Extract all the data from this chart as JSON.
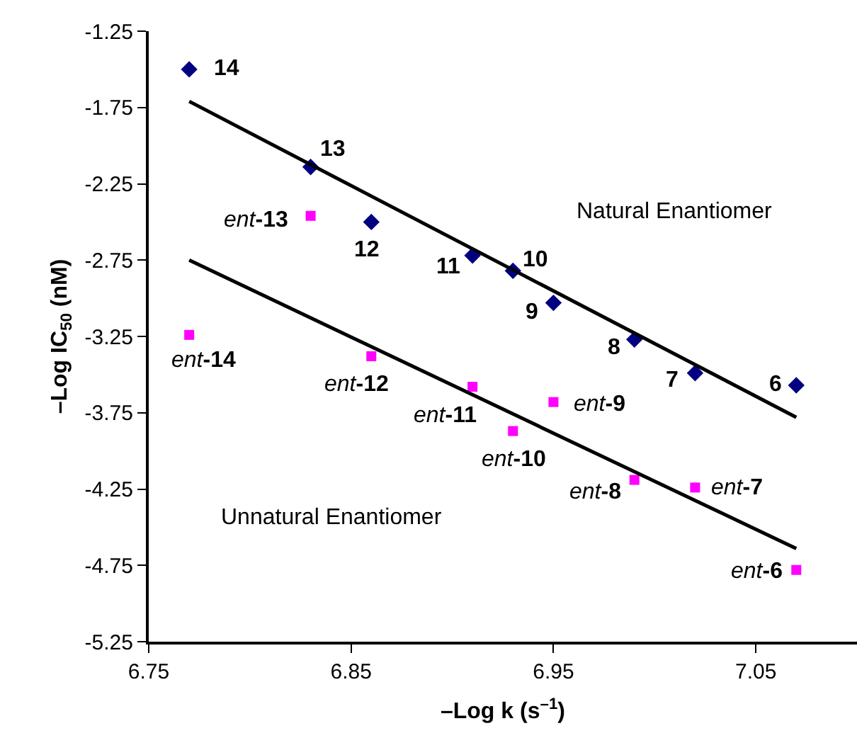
{
  "chart_data": {
    "type": "scatter",
    "xlabel": "–Log k (s$^{–1}$)",
    "ylabel": "–Log IC$_{50}$ (nM)",
    "xlim": [
      6.75,
      7.1
    ],
    "xticks": [
      6.75,
      6.85,
      6.95,
      7.05
    ],
    "ylim": [
      -5.25,
      -1.25
    ],
    "yticks": [
      -5.25,
      -4.75,
      -4.25,
      -3.75,
      -3.25,
      -2.75,
      -2.25,
      -1.75,
      -1.25
    ],
    "grid": false,
    "series": [
      {
        "marker": "diamond",
        "color": "#000080",
        "x": [
          6.77,
          6.83,
          6.86,
          6.91,
          6.93,
          6.95,
          6.99,
          7.02,
          7.07
        ],
        "values": [
          -1.5,
          -2.14,
          -2.5,
          -2.72,
          -2.82,
          -3.03,
          -3.27,
          -3.49,
          -3.57
        ]
      },
      {
        "marker": "square",
        "color": "#ff00ff",
        "x": [
          6.83,
          6.77,
          6.86,
          6.91,
          6.93,
          6.95,
          6.99,
          7.02,
          7.07
        ],
        "values": [
          -2.46,
          -3.24,
          -3.38,
          -3.58,
          -3.87,
          -3.68,
          -4.19,
          -4.24,
          -4.78
        ]
      },
      {
        "type": "line",
        "marker": "none",
        "color": "#000000",
        "x": [
          6.77,
          7.07
        ],
        "values": [
          -1.71,
          -3.78
        ]
      },
      {
        "type": "line",
        "marker": "none",
        "color": "#000000",
        "x": [
          6.77,
          7.07
        ],
        "values": [
          -2.75,
          -4.64
        ]
      }
    ],
    "annotations": [
      {
        "text": "14",
        "x": 6.77,
        "y": -1.5
      },
      {
        "text": "13",
        "x": 6.83,
        "y": -2.14
      },
      {
        "text": "12",
        "x": 6.86,
        "y": -2.5
      },
      {
        "text": "11",
        "x": 6.91,
        "y": -2.72
      },
      {
        "text": "10",
        "x": 6.93,
        "y": -2.82
      },
      {
        "text": "9",
        "x": 6.95,
        "y": -3.03
      },
      {
        "text": "8",
        "x": 6.99,
        "y": -3.27
      },
      {
        "text": "7",
        "x": 7.02,
        "y": -3.49
      },
      {
        "text": "6",
        "x": 7.07,
        "y": -3.57
      },
      {
        "text": "ent-13",
        "x": 6.83,
        "y": -2.46
      },
      {
        "text": "ent-14",
        "x": 6.77,
        "y": -3.24
      },
      {
        "text": "ent-12",
        "x": 6.86,
        "y": -3.38
      },
      {
        "text": "ent-11",
        "x": 6.91,
        "y": -3.58
      },
      {
        "text": "ent-10",
        "x": 6.93,
        "y": -3.87
      },
      {
        "text": "ent-9",
        "x": 6.95,
        "y": -3.68
      },
      {
        "text": "ent-8",
        "x": 6.99,
        "y": -4.19
      },
      {
        "text": "ent-7",
        "x": 7.02,
        "y": -4.24
      },
      {
        "text": "ent-6",
        "x": 7.07,
        "y": -4.78
      },
      "Natural Enantiomer",
      "Unnatural Enantiomer"
    ]
  }
}
